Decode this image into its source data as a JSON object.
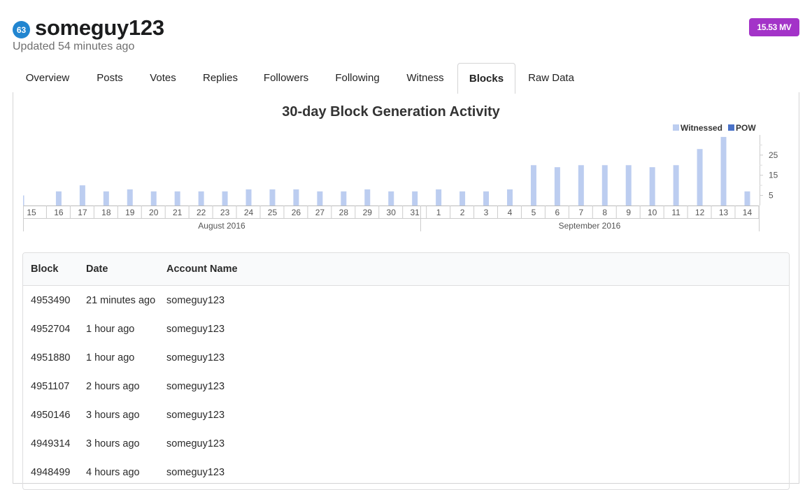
{
  "profile": {
    "reputation": "63",
    "username": "someguy123",
    "updated": "Updated 54 minutes ago",
    "vests_badge": "15.53 MV"
  },
  "tabs": [
    {
      "label": "Overview",
      "active": false
    },
    {
      "label": "Posts",
      "active": false
    },
    {
      "label": "Votes",
      "active": false
    },
    {
      "label": "Replies",
      "active": false
    },
    {
      "label": "Followers",
      "active": false
    },
    {
      "label": "Following",
      "active": false
    },
    {
      "label": "Witness",
      "active": false
    },
    {
      "label": "Blocks",
      "active": true
    },
    {
      "label": "Raw Data",
      "active": false
    }
  ],
  "chart_data": {
    "type": "bar",
    "title": "30-day Block Generation Activity",
    "legend": [
      {
        "name": "Witnessed",
        "color": "#bccdf0"
      },
      {
        "name": "POW",
        "color": "#4a72c8"
      }
    ],
    "legend_position": "top-right",
    "categories": [
      "15",
      "16",
      "17",
      "18",
      "19",
      "20",
      "21",
      "22",
      "23",
      "24",
      "25",
      "26",
      "27",
      "28",
      "29",
      "30",
      "31",
      "1",
      "2",
      "3",
      "4",
      "5",
      "6",
      "7",
      "8",
      "9",
      "10",
      "11",
      "12",
      "13",
      "14"
    ],
    "month_labels": [
      "August 2016",
      "September 2016"
    ],
    "series": [
      {
        "name": "Witnessed",
        "values": [
          5,
          7,
          10,
          7,
          8,
          7,
          7,
          7,
          7,
          8,
          8,
          8,
          7,
          7,
          8,
          7,
          7,
          8,
          7,
          7,
          8,
          20,
          19,
          20,
          20,
          20,
          19,
          20,
          28,
          34,
          7
        ]
      },
      {
        "name": "POW",
        "values": [
          0,
          0,
          0,
          0,
          0,
          0,
          0,
          0,
          0,
          0,
          0,
          0,
          0,
          0,
          0,
          0,
          0,
          0,
          0,
          0,
          0,
          0,
          0,
          0,
          0,
          0,
          0,
          0,
          0,
          0,
          0
        ]
      }
    ],
    "y_ticks": [
      "5",
      "15",
      "25"
    ],
    "ylim": [
      0,
      35
    ],
    "y_axis_side": "right",
    "grid": false
  },
  "table": {
    "headers": [
      "Block",
      "Date",
      "Account Name"
    ],
    "rows": [
      [
        "4953490",
        "21 minutes ago",
        "someguy123"
      ],
      [
        "4952704",
        "1 hour ago",
        "someguy123"
      ],
      [
        "4951880",
        "1 hour ago",
        "someguy123"
      ],
      [
        "4951107",
        "2 hours ago",
        "someguy123"
      ],
      [
        "4950146",
        "3 hours ago",
        "someguy123"
      ],
      [
        "4949314",
        "3 hours ago",
        "someguy123"
      ],
      [
        "4948499",
        "4 hours ago",
        "someguy123"
      ]
    ]
  },
  "colors": {
    "reputation_badge": "#2185d0",
    "vests_badge": "#a333c8",
    "bar": "#bccdf0"
  }
}
